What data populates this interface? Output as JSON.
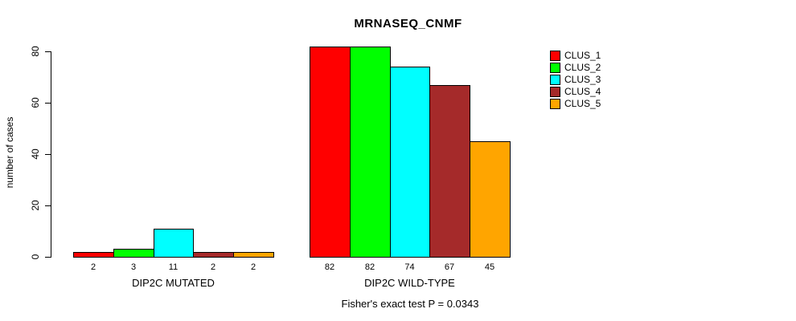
{
  "chart_data": {
    "type": "bar",
    "title": "MRNASEQ_CNMF",
    "xlabel": "",
    "ylabel": "number of cases",
    "ylim": [
      0,
      80
    ],
    "yticks": [
      0,
      20,
      40,
      60,
      80
    ],
    "grid": false,
    "legend_position": "right",
    "bar_border_color": "#000000",
    "categories": [
      "DIP2C MUTATED",
      "DIP2C WILD-TYPE"
    ],
    "series": [
      {
        "name": "CLUS_1",
        "color": "#FF0000",
        "values": [
          2,
          82
        ]
      },
      {
        "name": "CLUS_2",
        "color": "#00FF00",
        "values": [
          3,
          82
        ]
      },
      {
        "name": "CLUS_3",
        "color": "#00FFFF",
        "values": [
          11,
          74
        ]
      },
      {
        "name": "CLUS_4",
        "color": "#A52A2A",
        "values": [
          2,
          67
        ]
      },
      {
        "name": "CLUS_5",
        "color": "#FFA500",
        "values": [
          2,
          45
        ]
      }
    ],
    "bar_value_labels": [
      [
        2,
        3,
        11,
        2,
        2
      ],
      [
        82,
        82,
        74,
        67,
        45
      ]
    ],
    "annotation": "Fisher's exact test P = 0.0343"
  }
}
